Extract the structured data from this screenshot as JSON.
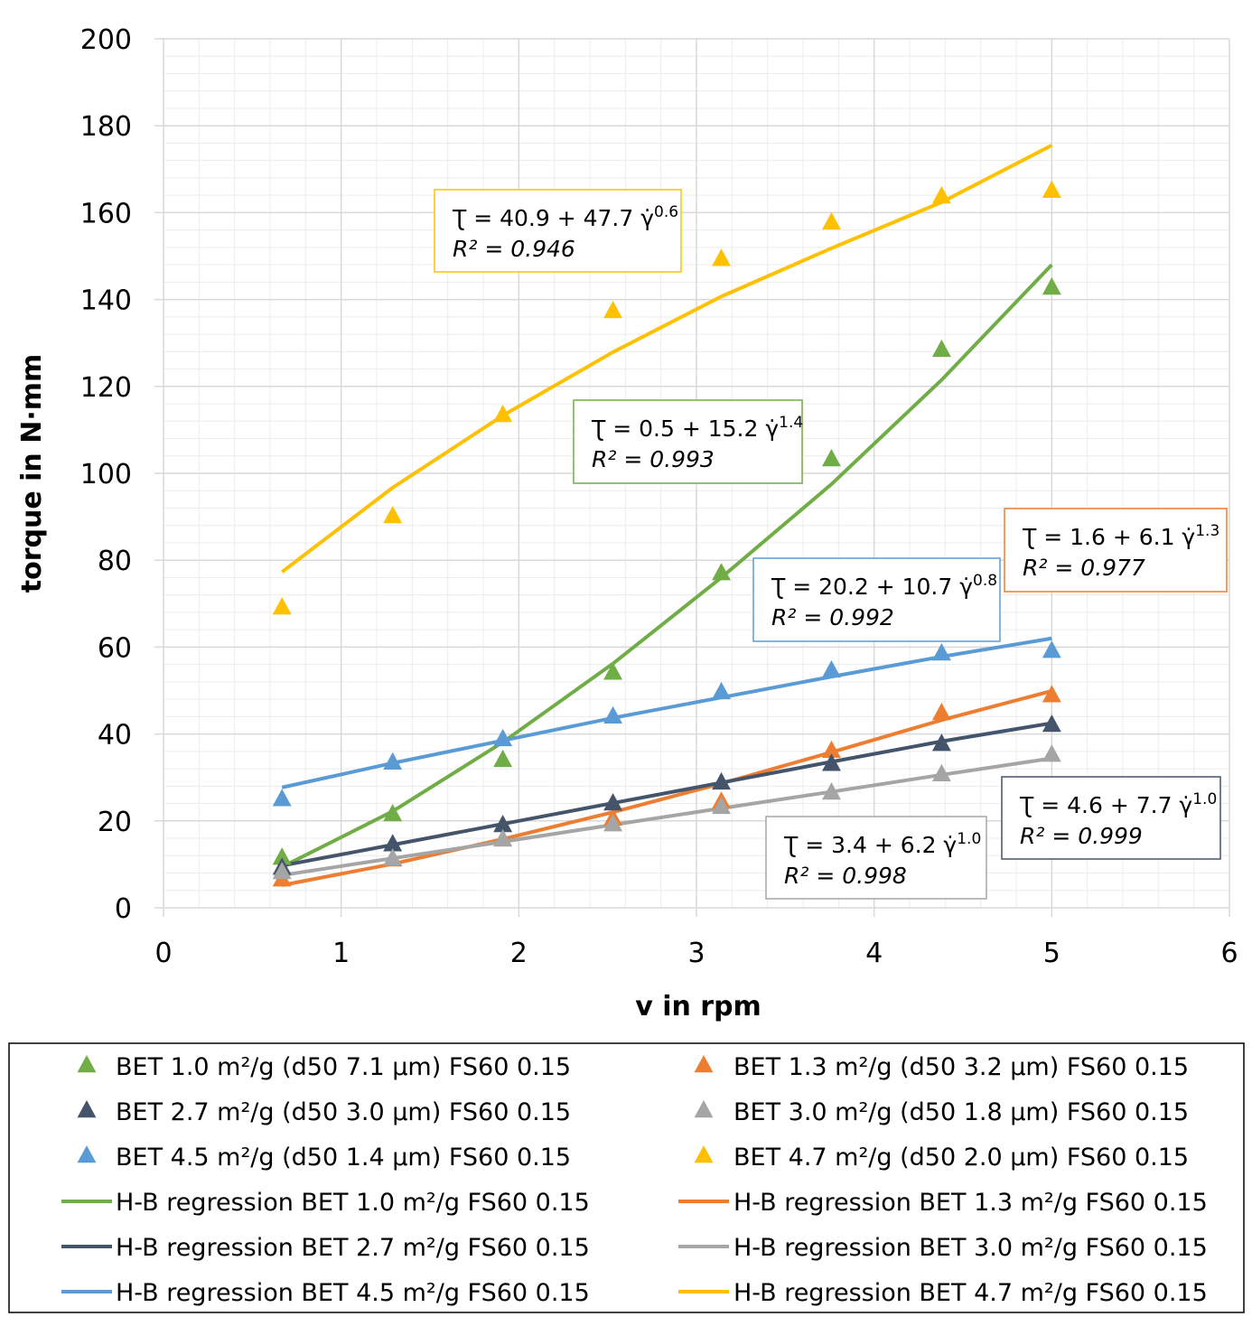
{
  "chart_data": {
    "type": "scatter",
    "title": "",
    "xlabel": "v in rpm",
    "ylabel": "torque in N·mm",
    "xlim": [
      0,
      6
    ],
    "ylim": [
      0,
      200
    ],
    "xticks": [
      0,
      1,
      2,
      3,
      4,
      5,
      6
    ],
    "yticks": [
      0,
      20,
      40,
      60,
      80,
      100,
      120,
      140,
      160,
      180,
      200
    ],
    "grid": true,
    "legend_placement": "bottom",
    "x": [
      0.667,
      1.29,
      1.91,
      2.53,
      3.14,
      3.76,
      4.38,
      5.0
    ],
    "series": [
      {
        "name": "BET 1.0 m²/g (d50 7.1 µm) FS60 0.15",
        "kind": "marker",
        "color": "#70AD47",
        "values": [
          11.2,
          21.2,
          33.7,
          53.8,
          76.7,
          102.9,
          128.1,
          142.4
        ]
      },
      {
        "name": "BET 1.3 m²/g (d50 3.2 µm) FS60 0.15",
        "kind": "marker",
        "color": "#ED7D31",
        "values": [
          6.2,
          10.8,
          15.4,
          20.2,
          24.1,
          35.8,
          44.5,
          48.6
        ]
      },
      {
        "name": "BET 2.7 m²/g (d50 3.0 µm) FS60 0.15",
        "kind": "marker",
        "color": "#44546A",
        "values": [
          8.9,
          14.3,
          18.7,
          23.7,
          28.5,
          32.8,
          37.4,
          41.8
        ]
      },
      {
        "name": "BET 3.0 m²/g (d50 1.8 µm) FS60 0.15",
        "kind": "marker",
        "color": "#A5A5A5",
        "values": [
          7.9,
          11.0,
          15.4,
          18.9,
          22.9,
          26.2,
          30.4,
          34.9
        ]
      },
      {
        "name": "BET 4.5 m²/g (d50 1.4 µm) FS60 0.15",
        "kind": "marker",
        "color": "#5B9BD5",
        "values": [
          24.7,
          33.1,
          38.5,
          43.7,
          49.3,
          54.3,
          58.2,
          58.8
        ]
      },
      {
        "name": "BET 4.7 m²/g (d50 2.0 µm) FS60 0.15",
        "kind": "marker",
        "color": "#FFC000",
        "values": [
          68.8,
          89.8,
          113.1,
          137.0,
          149.0,
          157.4,
          163.4,
          164.7
        ]
      },
      {
        "name": "H-B regression BET 1.0 m²/g FS60 0.15",
        "kind": "line",
        "color": "#70AD47",
        "values": [
          9.4,
          22.2,
          38.1,
          56.2,
          76.0,
          97.5,
          121.5,
          148.0
        ]
      },
      {
        "name": "H-B regression BET 1.3 m²/g FS60 0.15",
        "kind": "line",
        "color": "#ED7D31",
        "values": [
          5.2,
          10.1,
          15.8,
          22.0,
          28.6,
          35.8,
          43.2,
          49.9
        ]
      },
      {
        "name": "H-B regression BET 2.7 m²/g FS60 0.15",
        "kind": "line",
        "color": "#44546A",
        "values": [
          9.7,
          14.5,
          19.3,
          24.1,
          28.8,
          33.6,
          38.3,
          42.5
        ]
      },
      {
        "name": "H-B regression BET 3.0 m²/g FS60 0.15",
        "kind": "line",
        "color": "#A5A5A5",
        "values": [
          7.5,
          11.4,
          15.2,
          19.1,
          22.9,
          26.7,
          30.6,
          34.4
        ]
      },
      {
        "name": "H-B regression BET 4.5 m²/g FS60 0.15",
        "kind": "line",
        "color": "#5B9BD5",
        "values": [
          27.7,
          33.3,
          38.5,
          43.7,
          48.4,
          53.2,
          57.8,
          62.0
        ]
      },
      {
        "name": "H-B regression BET 4.7 m²/g FS60 0.15",
        "kind": "line",
        "color": "#FFC000",
        "values": [
          77.3,
          96.7,
          113.3,
          127.9,
          140.7,
          151.8,
          162.4,
          175.5
        ]
      }
    ],
    "annotations": [
      {
        "color": "#FFC000",
        "eq": "Ʈ = 40.9 + 47.7 γ̇",
        "exp": "0.6",
        "r2": "R² = 0.946"
      },
      {
        "color": "#70AD47",
        "eq": "Ʈ = 0.5 + 15.2 γ̇",
        "exp": "1.4",
        "r2": "R² = 0.993"
      },
      {
        "color": "#ED7D31",
        "eq": "Ʈ = 1.6 + 6.1 γ̇",
        "exp": "1.3",
        "r2": "R² = 0.977"
      },
      {
        "color": "#5B9BD5",
        "eq": "Ʈ = 20.2 + 10.7 γ̇",
        "exp": "0.8",
        "r2": "R² = 0.992"
      },
      {
        "color": "#44546A",
        "eq": "Ʈ = 4.6 + 7.7 γ̇",
        "exp": "1.0",
        "r2": "R² = 0.999"
      },
      {
        "color": "#A5A5A5",
        "eq": "Ʈ = 3.4 + 6.2 γ̇",
        "exp": "1.0",
        "r2": "R² = 0.998"
      }
    ]
  }
}
